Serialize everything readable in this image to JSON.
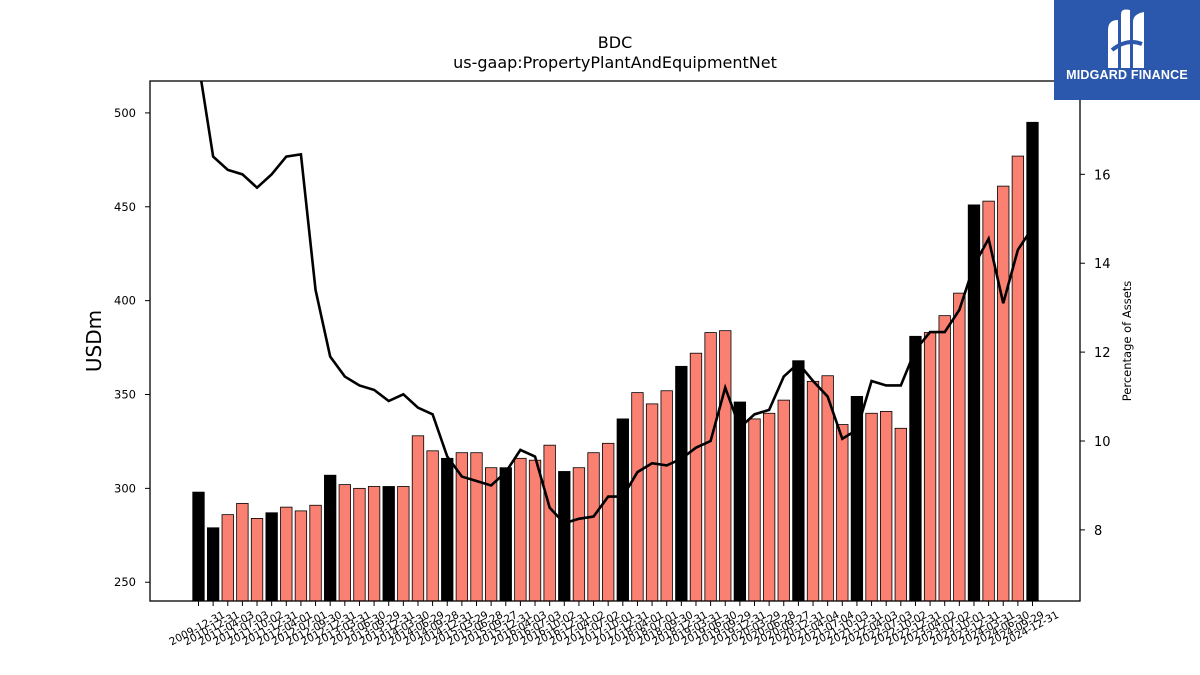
{
  "logo": {
    "brand": "MIDGARD FINANCE",
    "icon": "midgard-m-logo-icon"
  },
  "chart_data": {
    "type": "bar",
    "title": "BDC",
    "subtitle": "us-gaap:PropertyPlantAndEquipmentNet",
    "ylabel": "USDm",
    "y2label": "Percentage of Assets",
    "ylim": [
      240,
      517
    ],
    "y2lim": [
      6.4,
      18.1
    ],
    "yticks": [
      250,
      300,
      350,
      400,
      450,
      500
    ],
    "y2ticks": [
      8,
      10,
      12,
      14,
      16
    ],
    "colors": {
      "annual": "#000000",
      "quarterly": "#fa8072",
      "line": "#000000"
    },
    "categories": [
      "2009-12-31",
      "2010-12-31",
      "2011-04-03",
      "2011-07-03",
      "2011-10-02",
      "2011-12-31",
      "2012-04-01",
      "2012-07-01",
      "2012-09-30",
      "2012-12-31",
      "2013-03-31",
      "2013-06-30",
      "2013-09-29",
      "2013-12-31",
      "2014-03-30",
      "2014-06-29",
      "2014-09-28",
      "2014-12-31",
      "2015-03-29",
      "2015-06-28",
      "2015-09-27",
      "2015-12-31",
      "2016-04-03",
      "2016-07-03",
      "2016-10-02",
      "2016-12-31",
      "2017-04-02",
      "2017-07-02",
      "2017-10-01",
      "2017-12-31",
      "2018-04-01",
      "2018-07-01",
      "2018-09-30",
      "2018-12-31",
      "2019-03-31",
      "2019-06-30",
      "2019-09-29",
      "2019-12-31",
      "2020-03-29",
      "2020-06-28",
      "2020-09-27",
      "2020-12-31",
      "2021-04-04",
      "2021-07-04",
      "2021-10-03",
      "2021-12-31",
      "2022-04-03",
      "2022-07-03",
      "2022-10-02",
      "2022-12-31",
      "2023-04-02",
      "2023-07-02",
      "2023-10-01",
      "2023-12-31",
      "2024-03-31",
      "2024-06-30",
      "2024-09-29",
      "2024-12-31"
    ],
    "series": [
      {
        "values": [
          298,
          279,
          286,
          292,
          284,
          287,
          290,
          288,
          291,
          307,
          302,
          300,
          301,
          301,
          301,
          328,
          320,
          316,
          319,
          319,
          311,
          311,
          316,
          315,
          323,
          309,
          311,
          319,
          324,
          337,
          351,
          345,
          352,
          365,
          372,
          383,
          384,
          346,
          337,
          340,
          347,
          368,
          357,
          360,
          334,
          349,
          340,
          341,
          332,
          381,
          383,
          392,
          404,
          451,
          453,
          461,
          477,
          495
        ]
      },
      {
        "values": [
          18.5,
          16.4,
          16.1,
          16.0,
          15.7,
          16.0,
          16.4,
          16.45,
          13.4,
          11.9,
          11.45,
          11.25,
          11.15,
          10.9,
          11.05,
          10.75,
          10.6,
          9.65,
          9.2,
          9.1,
          9.0,
          9.3,
          9.8,
          9.65,
          8.5,
          8.15,
          8.25,
          8.3,
          8.75,
          8.75,
          9.3,
          9.5,
          9.45,
          9.6,
          9.85,
          10.0,
          11.2,
          10.3,
          10.6,
          10.7,
          11.45,
          11.75,
          11.35,
          11.0,
          10.05,
          10.25,
          11.35,
          11.25,
          11.25,
          12.05,
          12.45,
          12.45,
          12.95,
          13.95,
          14.55,
          13.1,
          14.3,
          14.8
        ]
      }
    ],
    "annual_flags": [
      1,
      1,
      0,
      0,
      0,
      1,
      0,
      0,
      0,
      1,
      0,
      0,
      0,
      1,
      0,
      0,
      0,
      1,
      0,
      0,
      0,
      1,
      0,
      0,
      0,
      1,
      0,
      0,
      0,
      1,
      0,
      0,
      0,
      1,
      0,
      0,
      0,
      1,
      0,
      0,
      0,
      1,
      0,
      0,
      0,
      1,
      0,
      0,
      0,
      1,
      0,
      0,
      0,
      1,
      0,
      0,
      0,
      1
    ]
  }
}
